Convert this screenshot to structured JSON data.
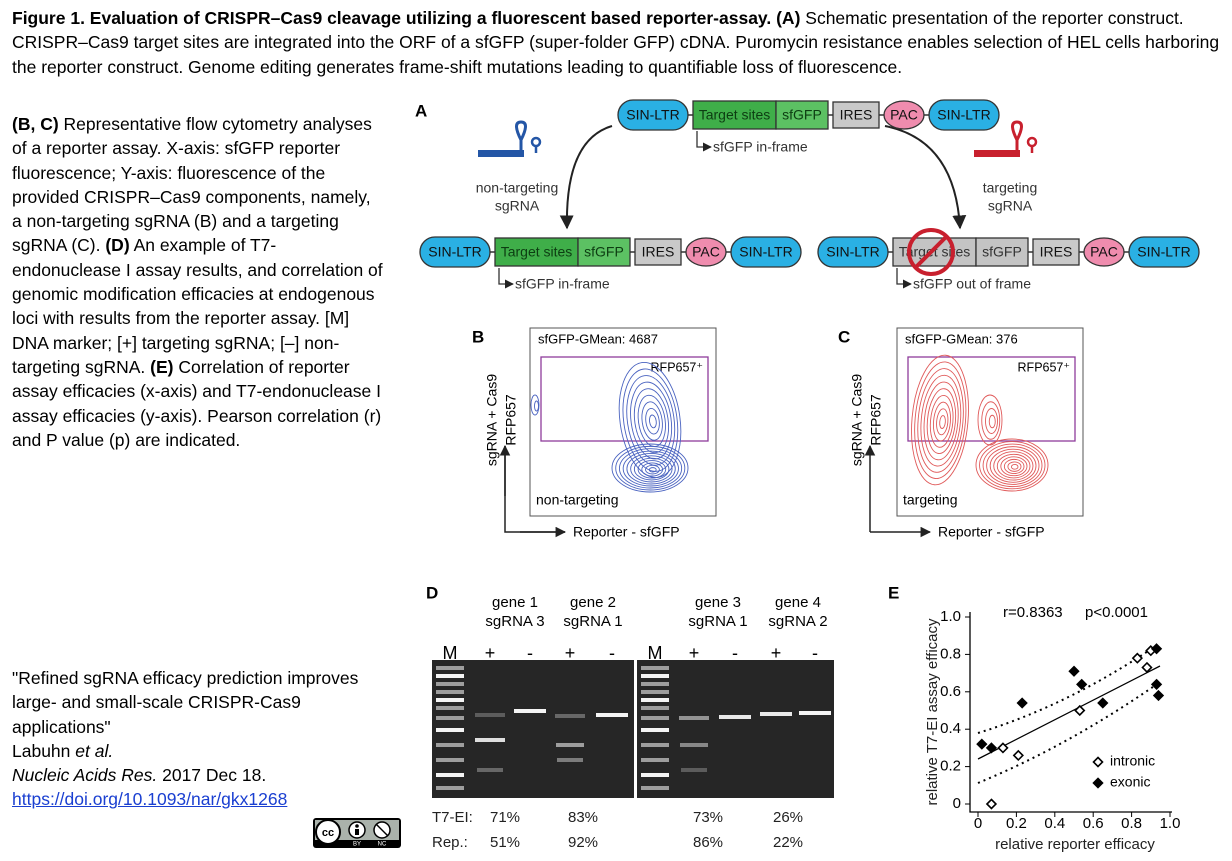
{
  "caption": {
    "title": "Figure 1. Evaluation of CRISPR–Cas9 cleavage utilizing a fluorescent based reporter-assay.",
    "a_label": "(A)",
    "a_text": "Schematic presentation of the reporter construct. CRISPR–Cas9 target sites are integrated into the ORF of a sfGFP (super-folder GFP) cDNA. Puromycin resistance enables selection of HEL cells harboring the reporter construct. Genome editing generates frame-shift mutations leading to quantifiable loss of fluorescence.",
    "bc_label": "(B, C)",
    "bc_text": "Representative flow cytometry analyses of a reporter assay. X-axis: sfGFP reporter fluorescence; Y-axis: fluorescence of the provided CRISPR–Cas9 components, namely, a non-targeting sgRNA (B) and a targeting sgRNA (C).",
    "d_label": "(D)",
    "d_text": "An example of T7-endonuclease I assay results, and correlation of genomic modification efficacies at endogenous loci with results from the reporter assay. [M] DNA marker; [+] targeting sgRNA; [–] non-targeting sgRNA.",
    "e_label": "(E)",
    "e_text": "Correlation of reporter assay efficacies (x-axis) and T7-endonuclease I assay efficacies (y-axis). Pearson correlation (r) and P value (p) are indicated."
  },
  "citation": {
    "title": "\"Refined sgRNA efficacy prediction improves large- and small-scale CRISPR-Cas9 applications\"",
    "author": "Labuhn",
    "et_al": "et al.",
    "journal": "Nucleic Acids Res.",
    "date": "2017 Dec 18.",
    "doi": "https://doi.org/10.1093/nar/gkx1268"
  },
  "license": {
    "by": "BY",
    "nc": "NC"
  },
  "panel_a": {
    "letter": "A",
    "elements": [
      "SIN-LTR",
      "Target sites",
      "sfGFP",
      "IRES",
      "PAC",
      "SIN-LTR"
    ],
    "in_frame": "sfGFP in-frame",
    "out_of_frame": "sfGFP out of frame",
    "non_targeting_label": [
      "non-targeting",
      "sgRNA"
    ],
    "targeting_label": [
      "targeting",
      "sgRNA"
    ]
  },
  "panel_b": {
    "letter": "B",
    "stat": "sfGFP-GMean: 4687",
    "gate": "RFP657⁺",
    "condition": "non-targeting",
    "y_axis": [
      "sgRNA + Cas9",
      "RFP657"
    ],
    "x_axis": "Reporter - sfGFP"
  },
  "panel_c": {
    "letter": "C",
    "stat": "sfGFP-GMean: 376",
    "gate": "RFP657⁺",
    "condition": "targeting",
    "y_axis": [
      "sgRNA + Cas9",
      "RFP657"
    ],
    "x_axis": "Reporter - sfGFP"
  },
  "panel_d": {
    "letter": "D",
    "groups": [
      {
        "gene": "gene 1",
        "sgrna": "sgRNA 3"
      },
      {
        "gene": "gene 2",
        "sgrna": "sgRNA 1"
      },
      {
        "gene": "gene 3",
        "sgrna": "sgRNA 1"
      },
      {
        "gene": "gene 4",
        "sgrna": "sgRNA 2"
      }
    ],
    "lanes": [
      "M",
      "+",
      "-",
      "+",
      "-",
      "M",
      "+",
      "-",
      "+",
      "-"
    ],
    "rows": [
      {
        "label": "T7-EI:",
        "values": [
          "71%",
          "83%",
          "73%",
          "26%"
        ]
      },
      {
        "label": "Rep.:",
        "values": [
          "51%",
          "92%",
          "86%",
          "22%"
        ]
      }
    ]
  },
  "panel_e": {
    "letter": "E"
  },
  "chart_data": {
    "type": "scatter",
    "x_label": "relative reporter efficacy",
    "y_label": "relative T7-EI assay efficacy",
    "annotations": [
      "r=0.8363",
      "p<0.0001"
    ],
    "xlim": [
      0,
      1
    ],
    "ylim": [
      0,
      1
    ],
    "xticks": [
      0,
      0.2,
      0.4,
      0.6,
      0.8,
      {
        "value": 1,
        "label": "1.0"
      }
    ],
    "yticks": [
      0,
      0.2,
      0.4,
      0.6,
      0.8,
      {
        "value": 1,
        "label": "1.0"
      }
    ],
    "legend": "lower right",
    "series": [
      {
        "name": "intronic",
        "color": "#000000",
        "marker": "open-diamond",
        "x": [
          0.07,
          0.13,
          0.21,
          0.53,
          0.83,
          0.88,
          0.9
        ],
        "values": [
          0.0,
          0.3,
          0.26,
          0.5,
          0.78,
          0.73,
          0.82
        ]
      },
      {
        "name": "exonic",
        "color": "#000000",
        "marker": "filled-diamond",
        "x": [
          0.02,
          0.07,
          0.23,
          0.5,
          0.54,
          0.65,
          0.93,
          0.93,
          0.94
        ],
        "values": [
          0.32,
          0.3,
          0.54,
          0.71,
          0.64,
          0.54,
          0.83,
          0.64,
          0.58
        ]
      }
    ]
  }
}
